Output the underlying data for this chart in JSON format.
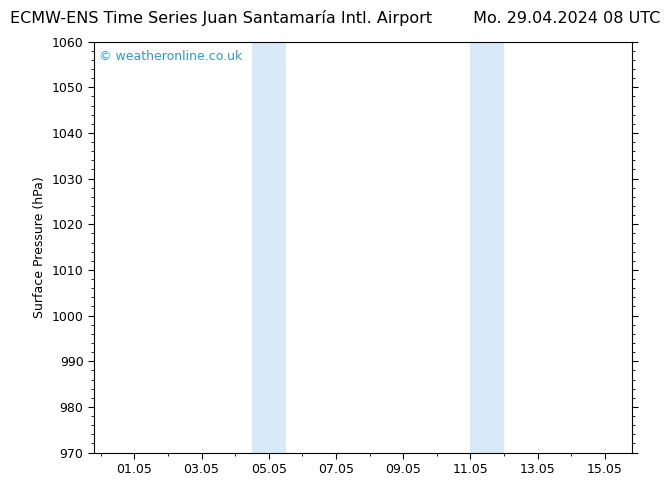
{
  "title_left": "ECMW-ENS Time Series Juan Santamaría Intl. Airport",
  "title_right": "Mo. 29.04.2024 08 UTC",
  "ylabel": "Surface Pressure (hPa)",
  "background_color": "#ffffff",
  "plot_bg_color": "#ffffff",
  "ylim": [
    970,
    1060
  ],
  "yticks": [
    970,
    980,
    990,
    1000,
    1010,
    1020,
    1030,
    1040,
    1050,
    1060
  ],
  "xtick_labels": [
    "01.05",
    "03.05",
    "05.05",
    "07.05",
    "09.05",
    "11.05",
    "13.05",
    "15.05"
  ],
  "xtick_positions": [
    1.0,
    3.0,
    5.0,
    7.0,
    9.0,
    11.0,
    13.0,
    15.0
  ],
  "xlim_left": -0.2,
  "xlim_right": 15.8,
  "shaded_bands": [
    {
      "x_start": 4.5,
      "x_end": 5.5,
      "color": "#d8eaf7"
    },
    {
      "x_start": 11.0,
      "x_end": 12.0,
      "color": "#d8eaf7"
    }
  ],
  "watermark_text": "© weatheronline.co.uk",
  "watermark_color": "#3399cc",
  "title_fontsize": 11.5,
  "tick_fontsize": 9,
  "ylabel_fontsize": 9,
  "frame_color": "#000000",
  "tick_color": "#000000"
}
